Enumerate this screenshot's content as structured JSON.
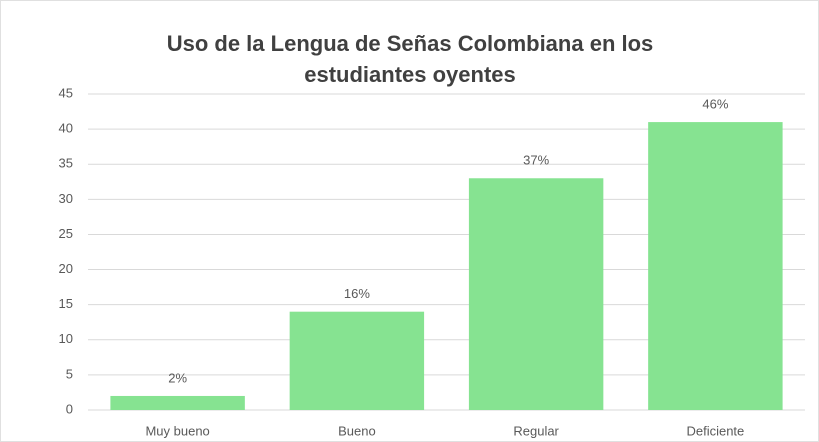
{
  "chart_data": {
    "type": "bar",
    "title": "Uso de la Lengua de Señas Colombiana en los estudiantes oyentes",
    "categories": [
      "Muy bueno",
      "Bueno",
      "Regular",
      "Deficiente"
    ],
    "values": [
      2,
      14,
      33,
      41
    ],
    "value_labels": [
      "2%",
      "16%",
      "37%",
      "46%"
    ],
    "color": "#86e391",
    "ylim": [
      0,
      45
    ],
    "yticks": [
      0,
      5,
      10,
      15,
      20,
      25,
      30,
      35,
      40,
      45
    ],
    "grid": true
  }
}
